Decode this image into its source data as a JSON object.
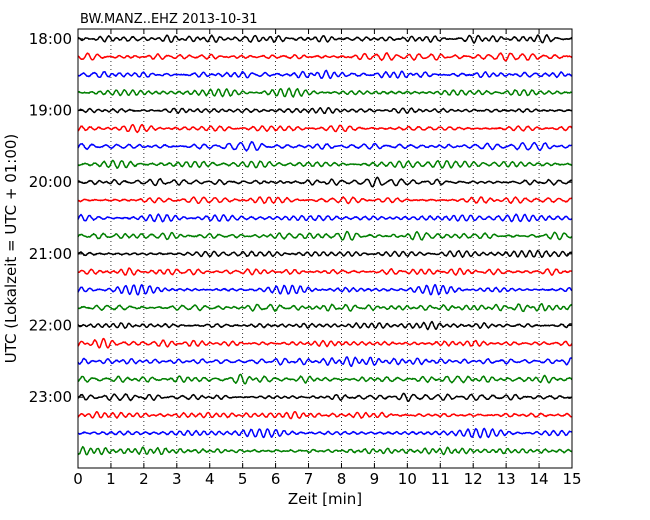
{
  "chart_data": {
    "type": "line",
    "title": "BW.MANZ..EHZ 2013-10-31",
    "xlabel": "Zeit  [min]",
    "ylabel": "UTC (Lokalzeit = UTC + 01:00)",
    "xlim": [
      0,
      15
    ],
    "x_ticks": [
      "0",
      "1",
      "2",
      "3",
      "4",
      "5",
      "6",
      "7",
      "8",
      "9",
      "10",
      "11",
      "12",
      "13",
      "14",
      "15"
    ],
    "y_ticks": [
      "18:00",
      "19:00",
      "20:00",
      "21:00",
      "22:00",
      "23:00"
    ],
    "grid": "vertical dotted",
    "series": [
      {
        "start": "18:00",
        "color": "#000000"
      },
      {
        "start": "18:15",
        "color": "#ff0000"
      },
      {
        "start": "18:30",
        "color": "#0000ff"
      },
      {
        "start": "18:45",
        "color": "#007f00"
      },
      {
        "start": "19:00",
        "color": "#000000"
      },
      {
        "start": "19:15",
        "color": "#ff0000"
      },
      {
        "start": "19:30",
        "color": "#0000ff"
      },
      {
        "start": "19:45",
        "color": "#007f00"
      },
      {
        "start": "20:00",
        "color": "#000000"
      },
      {
        "start": "20:15",
        "color": "#ff0000"
      },
      {
        "start": "20:30",
        "color": "#0000ff"
      },
      {
        "start": "20:45",
        "color": "#007f00"
      },
      {
        "start": "21:00",
        "color": "#000000"
      },
      {
        "start": "21:15",
        "color": "#ff0000"
      },
      {
        "start": "21:30",
        "color": "#0000ff"
      },
      {
        "start": "21:45",
        "color": "#007f00"
      },
      {
        "start": "22:00",
        "color": "#000000"
      },
      {
        "start": "22:15",
        "color": "#ff0000"
      },
      {
        "start": "22:30",
        "color": "#0000ff"
      },
      {
        "start": "22:45",
        "color": "#007f00"
      },
      {
        "start": "23:00",
        "color": "#000000"
      },
      {
        "start": "23:15",
        "color": "#ff0000"
      },
      {
        "start": "23:30",
        "color": "#0000ff"
      },
      {
        "start": "23:45",
        "color": "#007f00"
      }
    ]
  }
}
